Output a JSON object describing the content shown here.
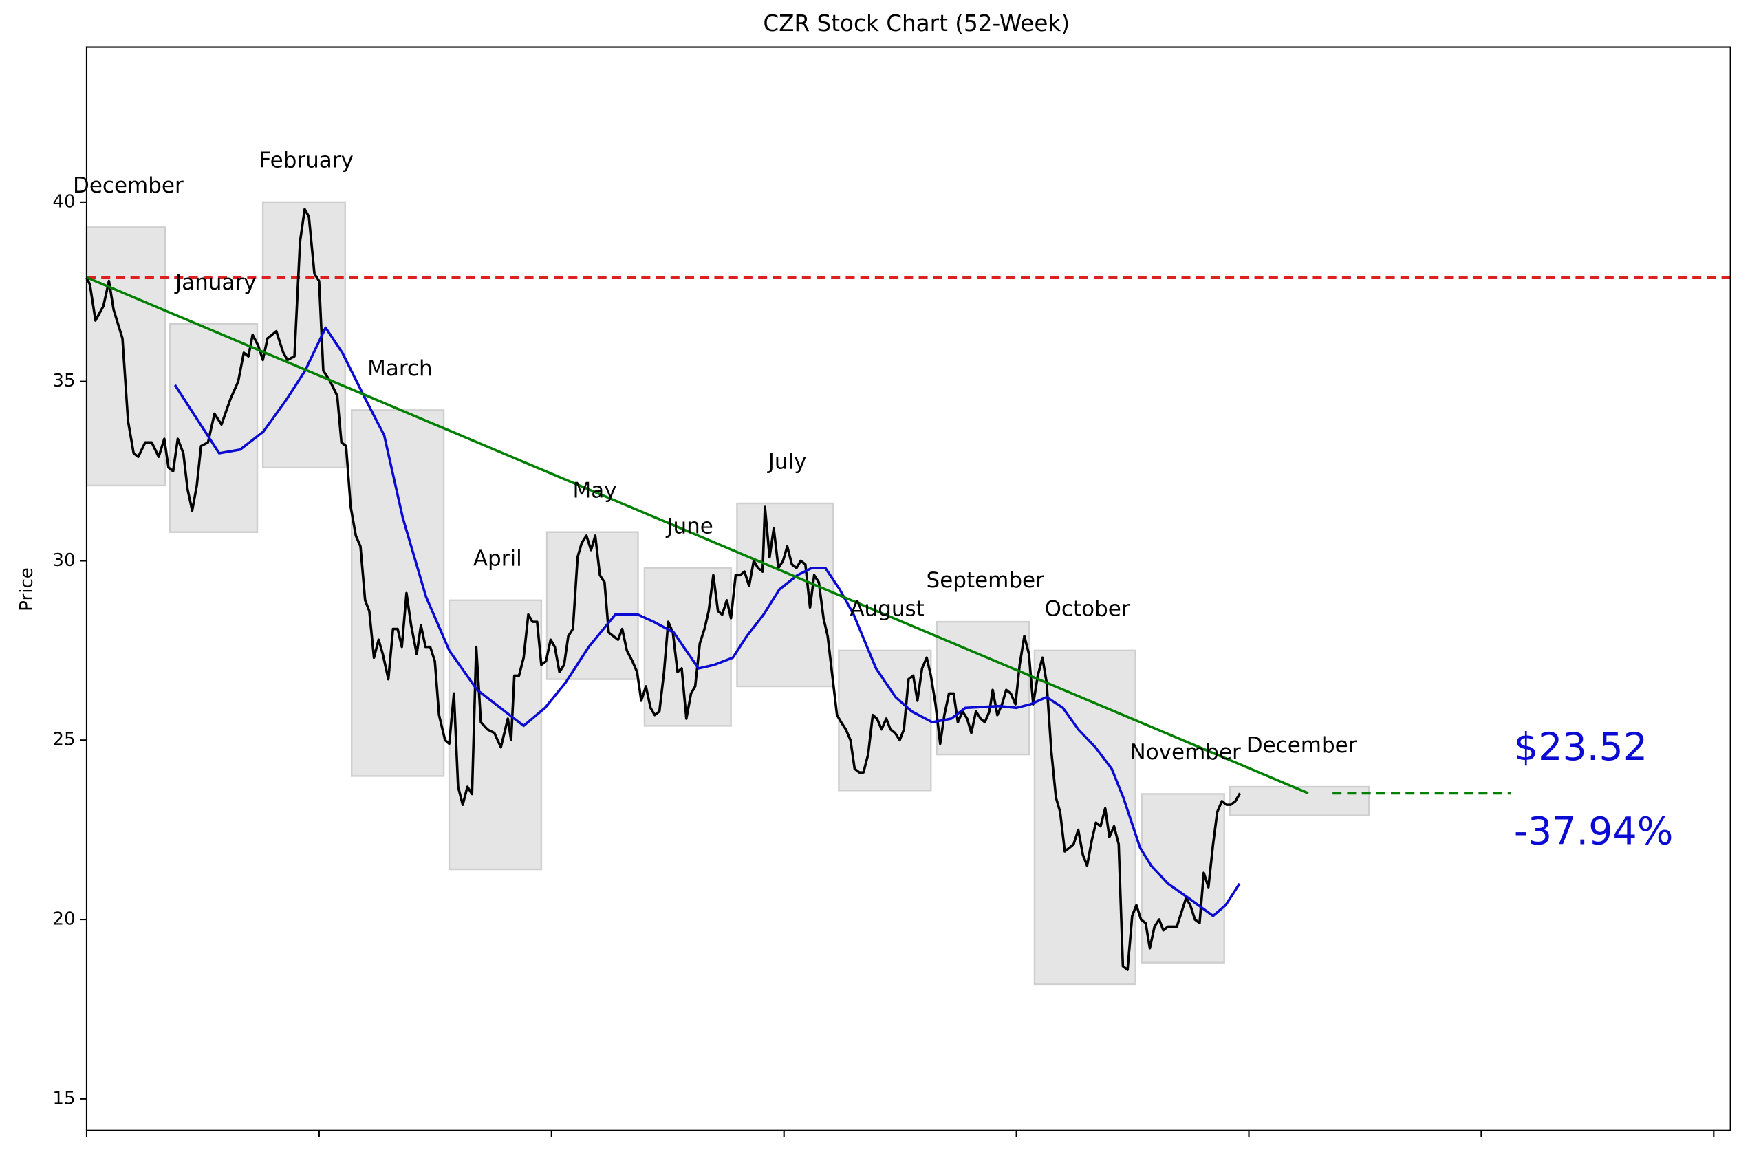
{
  "chart_data": {
    "type": "line",
    "title": "CZR Stock Chart (52-Week)",
    "ylabel": "Price",
    "xlim": [
      0,
      353.6
    ],
    "xticks": [
      0,
      50,
      100,
      150,
      200,
      250,
      300,
      350
    ],
    "ylim": [
      14.12,
      44.32
    ],
    "yticks": [
      15,
      20,
      25,
      30,
      35,
      40
    ],
    "months": [
      {
        "label": "December",
        "x0": 0,
        "x1": 16.9,
        "low": 32.1,
        "high": 39.3
      },
      {
        "label": "January",
        "x0": 17.9,
        "x1": 36.7,
        "low": 30.8,
        "high": 36.6
      },
      {
        "label": "February",
        "x0": 37.9,
        "x1": 55.6,
        "low": 32.6,
        "high": 40.0
      },
      {
        "label": "March",
        "x0": 57,
        "x1": 76.8,
        "low": 24.0,
        "high": 34.2
      },
      {
        "label": "April",
        "x0": 78,
        "x1": 97.8,
        "low": 21.4,
        "high": 28.9
      },
      {
        "label": "May",
        "x0": 99,
        "x1": 118.6,
        "low": 26.7,
        "high": 30.8
      },
      {
        "label": "June",
        "x0": 120,
        "x1": 138.6,
        "low": 25.4,
        "high": 29.8
      },
      {
        "label": "July",
        "x0": 139.9,
        "x1": 160.6,
        "low": 26.5,
        "high": 31.6
      },
      {
        "label": "August",
        "x0": 161.8,
        "x1": 181.6,
        "low": 23.6,
        "high": 27.5
      },
      {
        "label": "September",
        "x0": 182.9,
        "x1": 202.7,
        "low": 24.6,
        "high": 28.3
      },
      {
        "label": "October",
        "x0": 203.9,
        "x1": 225.6,
        "low": 18.2,
        "high": 27.5
      },
      {
        "label": "November",
        "x0": 227,
        "x1": 244.7,
        "low": 18.8,
        "high": 23.5
      },
      {
        "label": "December",
        "x0": 245.9,
        "x1": 275.8,
        "low": 22.9,
        "high": 23.7
      }
    ],
    "series": [
      {
        "color": "#000000",
        "x": [
          0,
          0.7,
          1.9,
          3.6,
          4.8,
          5.8,
          7.7,
          8.9,
          10.1,
          11.1,
          12.6,
          14,
          15.5,
          16.7,
          17.6,
          18.6,
          19.6,
          20.8,
          21.7,
          22.7,
          23.7,
          24.6,
          26.1,
          27.5,
          29,
          30.9,
          32.6,
          33.8,
          34.8,
          35.7,
          36.9,
          37.9,
          38.9,
          40.8,
          42.3,
          43.2,
          44.7,
          45.9,
          46.9,
          47.8,
          49,
          50,
          50.9,
          52.4,
          53.9,
          54.8,
          55.8,
          56.8,
          57.9,
          58.9,
          59.9,
          60.8,
          61.8,
          62.8,
          63.7,
          64.9,
          65.9,
          66.9,
          67.8,
          68.8,
          69.8,
          71,
          71.9,
          72.9,
          73.9,
          74.9,
          75.8,
          77.1,
          78,
          79,
          79.9,
          80.9,
          81.9,
          82.9,
          83.8,
          84.8,
          86.2,
          87.7,
          89.1,
          90.6,
          91.3,
          92,
          93,
          94,
          95,
          95.9,
          96.9,
          97.8,
          98.8,
          99.8,
          100.7,
          101.7,
          102.7,
          103.6,
          104.6,
          105.6,
          106.5,
          107.5,
          108.5,
          109.4,
          110.4,
          111.4,
          112.3,
          113.3,
          114.3,
          115.2,
          116.2,
          117.4,
          118.4,
          119.3,
          120.3,
          121.3,
          122.2,
          123.2,
          124.2,
          125.1,
          126.1,
          127.1,
          128,
          129,
          130,
          130.9,
          131.9,
          132.9,
          133.8,
          134.8,
          135.8,
          136.7,
          137.7,
          138.6,
          139.6,
          140.6,
          141.5,
          142.5,
          143.5,
          144.4,
          145.4,
          145.9,
          146.9,
          147.8,
          148.8,
          149.8,
          150.7,
          151.7,
          152.7,
          153.6,
          154.6,
          155.6,
          156.5,
          157.5,
          158.5,
          159.4,
          160.4,
          161.4,
          162.3,
          163.3,
          164.3,
          165.2,
          166.2,
          167.1,
          168.1,
          169.1,
          170,
          171,
          172,
          172.9,
          173.9,
          174.9,
          175.8,
          176.8,
          177.8,
          178.7,
          179.7,
          180.7,
          181.6,
          182.6,
          183.6,
          184.5,
          185.5,
          186.5,
          187.4,
          188.4,
          189.4,
          190.3,
          191.3,
          192.3,
          193.2,
          194.2,
          194.9,
          195.9,
          196.9,
          197.8,
          198.8,
          199.8,
          200.7,
          201.7,
          202.7,
          203.6,
          204.6,
          205.6,
          206.5,
          207.5,
          208.5,
          209.4,
          210.4,
          211.4,
          212.3,
          213.3,
          214.3,
          215.2,
          216.2,
          217.1,
          218.1,
          219.1,
          220,
          221,
          222,
          222.9,
          223.9,
          224.9,
          225.8,
          226.8,
          227.8,
          228.7,
          229.7,
          230.7,
          231.6,
          232.6,
          233.6,
          234.5,
          235.5,
          236.5,
          237.4,
          238.4,
          239.4,
          240.3,
          241.3,
          242.3,
          243.2,
          244.2,
          245.2,
          246.1,
          247.1,
          248.1
        ],
        "values": [
          37.9,
          37.7,
          36.7,
          37.1,
          37.8,
          37.0,
          36.2,
          33.9,
          33.0,
          32.9,
          33.3,
          33.3,
          32.9,
          33.4,
          32.6,
          32.5,
          33.4,
          33.0,
          32.0,
          31.4,
          32.1,
          33.2,
          33.3,
          34.1,
          33.8,
          34.5,
          35.0,
          35.8,
          35.7,
          36.3,
          36.0,
          35.6,
          36.2,
          36.4,
          35.8,
          35.6,
          35.7,
          38.9,
          39.8,
          39.6,
          38.0,
          37.8,
          35.3,
          35.0,
          34.6,
          33.3,
          33.2,
          31.5,
          30.7,
          30.4,
          28.9,
          28.6,
          27.3,
          27.8,
          27.4,
          26.7,
          28.1,
          28.1,
          27.6,
          29.1,
          28.2,
          27.4,
          28.2,
          27.6,
          27.6,
          27.2,
          25.7,
          25.0,
          24.9,
          26.3,
          23.7,
          23.2,
          23.7,
          23.5,
          27.6,
          25.5,
          25.3,
          25.2,
          24.8,
          25.6,
          25.0,
          26.8,
          26.8,
          27.3,
          28.5,
          28.3,
          28.3,
          27.1,
          27.2,
          27.8,
          27.6,
          26.9,
          27.1,
          27.9,
          28.1,
          30.1,
          30.5,
          30.7,
          30.3,
          30.7,
          29.6,
          29.4,
          28.0,
          27.9,
          27.8,
          28.1,
          27.5,
          27.2,
          26.9,
          26.1,
          26.5,
          25.9,
          25.7,
          25.8,
          26.9,
          28.3,
          28.0,
          26.9,
          27.0,
          25.6,
          26.3,
          26.5,
          27.7,
          28.1,
          28.6,
          29.6,
          28.6,
          28.5,
          28.9,
          28.4,
          29.6,
          29.6,
          29.7,
          29.3,
          30.0,
          29.8,
          29.7,
          31.5,
          30.1,
          30.9,
          29.8,
          30.0,
          30.4,
          29.9,
          29.8,
          30.0,
          29.9,
          28.7,
          29.6,
          29.4,
          28.4,
          27.9,
          26.8,
          25.7,
          25.5,
          25.3,
          25.0,
          24.2,
          24.1,
          24.1,
          24.6,
          25.7,
          25.6,
          25.3,
          25.6,
          25.3,
          25.2,
          25.0,
          25.3,
          26.7,
          26.8,
          26.1,
          27.0,
          27.3,
          26.8,
          26.0,
          24.9,
          25.7,
          26.3,
          26.3,
          25.5,
          25.8,
          25.6,
          25.2,
          25.8,
          25.6,
          25.5,
          25.8,
          26.4,
          25.7,
          26.0,
          26.4,
          26.3,
          26.0,
          27.1,
          27.9,
          27.4,
          26.0,
          26.8,
          27.3,
          26.6,
          24.7,
          23.4,
          23.0,
          21.9,
          22.0,
          22.1,
          22.5,
          21.8,
          21.5,
          22.2,
          22.7,
          22.6,
          23.1,
          22.3,
          22.6,
          22.1,
          18.7,
          18.6,
          20.1,
          20.4,
          20.0,
          19.9,
          19.2,
          19.8,
          20.0,
          19.7,
          19.8,
          19.8,
          19.8,
          20.2,
          20.6,
          20.4,
          20.0,
          19.9,
          21.3,
          20.9,
          22.1,
          23.0,
          23.3,
          23.2,
          23.2,
          23.3,
          23.52
        ]
      },
      {
        "color": "#0a0ad2",
        "x": [
          19,
          23,
          28.5,
          33,
          38,
          43,
          47,
          51.4,
          55,
          60,
          64,
          68,
          73,
          78,
          84,
          89,
          94,
          98.6,
          103,
          108,
          113.7,
          118.6,
          122,
          126.3,
          131.6,
          135,
          139,
          142,
          145.6,
          149,
          152.9,
          156,
          158.9,
          162,
          165,
          169.8,
          174,
          177.5,
          181.9,
          186,
          189,
          196.4,
          200,
          203,
          206.5,
          210,
          213.3,
          217,
          220.5,
          223,
          226.6,
          229,
          232.6,
          237,
          242.3,
          245,
          248
        ],
        "values": [
          34.9,
          34.1,
          33.0,
          33.1,
          33.6,
          34.5,
          35.3,
          36.5,
          35.8,
          34.5,
          33.5,
          31.2,
          29.0,
          27.5,
          26.4,
          25.9,
          25.4,
          25.9,
          26.6,
          27.6,
          28.5,
          28.5,
          28.3,
          28.0,
          27.0,
          27.1,
          27.3,
          27.9,
          28.5,
          29.2,
          29.6,
          29.8,
          29.8,
          29.2,
          28.5,
          27.0,
          26.2,
          25.8,
          25.5,
          25.6,
          25.9,
          25.95,
          25.9,
          26.0,
          26.2,
          25.9,
          25.3,
          24.8,
          24.2,
          23.4,
          22.0,
          21.5,
          21.0,
          20.6,
          20.1,
          20.4,
          21.0
        ]
      },
      {
        "color": "#008000",
        "x": [
          0,
          262.8
        ],
        "values": [
          37.9,
          23.52
        ]
      }
    ],
    "hline": {
      "color": "#dd2020",
      "value": 37.9,
      "dashed": true
    },
    "target": {
      "color": "#008000",
      "x": [
        268,
        306.3
      ],
      "value": 23.52,
      "dashed": true
    },
    "annotations": [
      {
        "text": "$23.52",
        "color": "#0a0ad2"
      },
      {
        "text": "-37.94%",
        "color": "#0a0ad2"
      }
    ]
  }
}
